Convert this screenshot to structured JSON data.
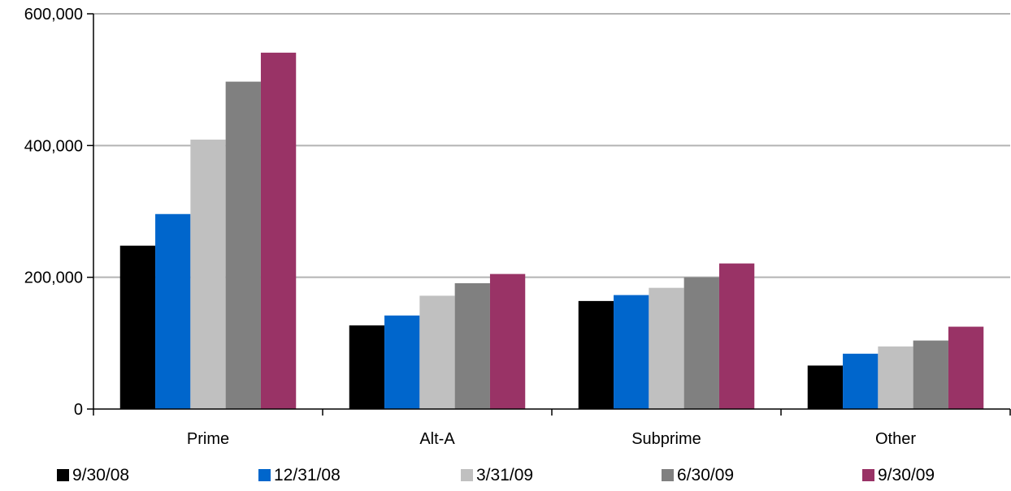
{
  "chart_data": {
    "type": "bar",
    "title": "",
    "xlabel": "",
    "ylabel": "",
    "categories": [
      "Prime",
      "Alt-A",
      "Subprime",
      "Other"
    ],
    "ylim": [
      0,
      600000
    ],
    "yticks": [
      0,
      200000,
      400000,
      600000
    ],
    "ytick_labels": [
      "0",
      "200,000",
      "400,000",
      "600,000"
    ],
    "grid": true,
    "legend_position": "bottom",
    "series": [
      {
        "name": "9/30/08",
        "color": "#000000",
        "values": [
          248000,
          127000,
          164000,
          66000
        ]
      },
      {
        "name": "12/31/08",
        "color": "#0066cc",
        "values": [
          296000,
          142000,
          173000,
          84000
        ]
      },
      {
        "name": "3/31/09",
        "color": "#c0c0c0",
        "values": [
          409000,
          172000,
          184000,
          95000
        ]
      },
      {
        "name": "6/30/09",
        "color": "#808080",
        "values": [
          497000,
          191000,
          200000,
          104000
        ]
      },
      {
        "name": "9/30/09",
        "color": "#993366",
        "values": [
          541000,
          205000,
          221000,
          125000
        ]
      }
    ]
  }
}
